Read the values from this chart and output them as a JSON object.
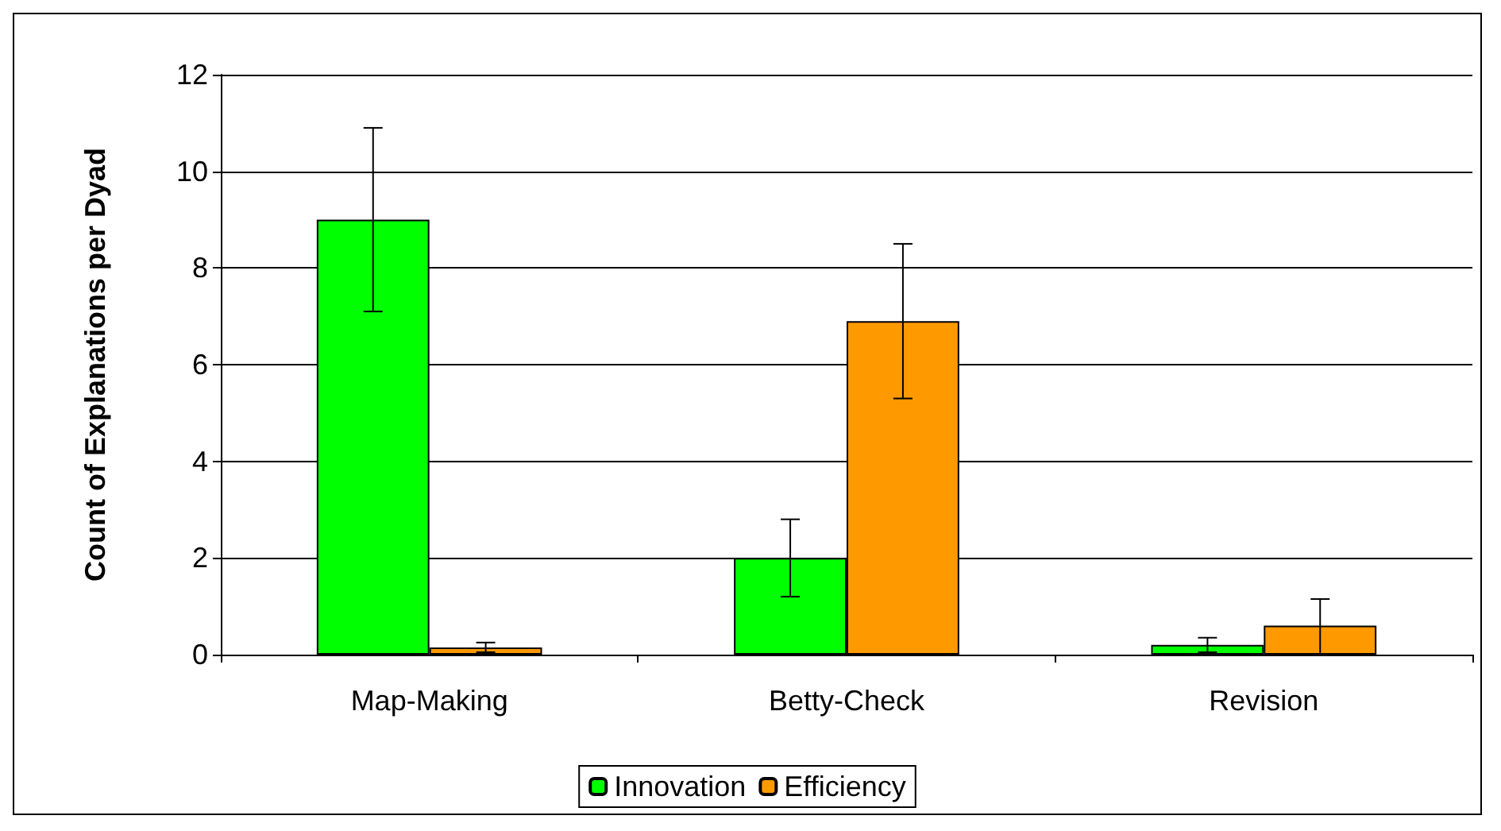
{
  "chart_data": {
    "type": "bar",
    "ylabel": "Count of Explanations per Dyad",
    "categories": [
      "Map-Making",
      "Betty-Check",
      "Revision"
    ],
    "series": [
      {
        "name": "Innovation",
        "color": "#00ff00",
        "values": [
          9,
          2,
          0.2
        ],
        "errors": [
          [
            7.1,
            10.9
          ],
          [
            1.2,
            2.8
          ],
          [
            0.05,
            0.35
          ]
        ]
      },
      {
        "name": "Efficiency",
        "color": "#ff9900",
        "values": [
          0.15,
          6.9,
          0.6
        ],
        "errors": [
          [
            0.05,
            0.25
          ],
          [
            5.3,
            8.5
          ],
          [
            0,
            1.15
          ]
        ]
      }
    ],
    "ylim": [
      0,
      12
    ],
    "yticks": [
      0,
      2,
      4,
      6,
      8,
      10,
      12
    ],
    "grid": "y",
    "legend": "bottom"
  }
}
